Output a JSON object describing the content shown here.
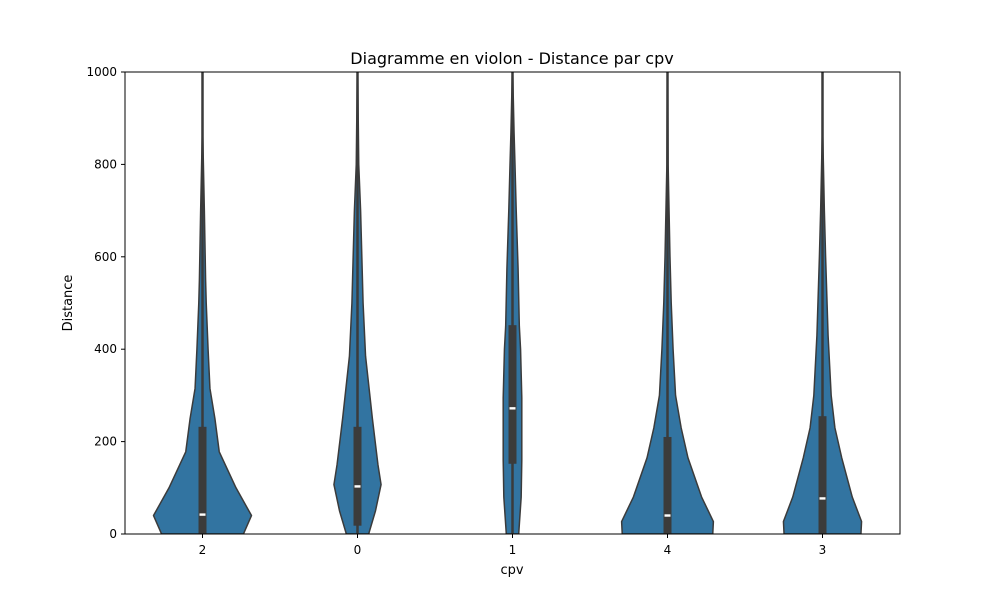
{
  "chart_data": {
    "type": "violin",
    "title": "Diagramme en violon - Distance par cpv",
    "xlabel": "cpv",
    "ylabel": "Distance",
    "ylim": [
      0,
      1000
    ],
    "yticks": [
      0,
      200,
      400,
      600,
      800,
      1000
    ],
    "grid": false,
    "color": "#3274a1",
    "categories": [
      "2",
      "0",
      "1",
      "4",
      "3"
    ],
    "violins": [
      {
        "category": "2",
        "q1": 0,
        "median": 42,
        "q3": 232,
        "whisker_low": 0,
        "whisker_high": 1000,
        "profile": [
          [
            0,
            0.66
          ],
          [
            40,
            0.79
          ],
          [
            100,
            0.54
          ],
          [
            178,
            0.27
          ],
          [
            250,
            0.2
          ],
          [
            315,
            0.12
          ],
          [
            400,
            0.09
          ],
          [
            500,
            0.06
          ],
          [
            550,
            0.05
          ],
          [
            700,
            0.03
          ],
          [
            860,
            0.005
          ],
          [
            1000,
            0.003
          ]
        ]
      },
      {
        "category": "0",
        "q1": 18,
        "median": 103,
        "q3": 232,
        "whisker_low": 0,
        "whisker_high": 1000,
        "profile": [
          [
            0,
            0.18
          ],
          [
            50,
            0.29
          ],
          [
            107,
            0.38
          ],
          [
            150,
            0.33
          ],
          [
            250,
            0.24
          ],
          [
            385,
            0.13
          ],
          [
            500,
            0.09
          ],
          [
            600,
            0.07
          ],
          [
            700,
            0.05
          ],
          [
            800,
            0.02
          ],
          [
            1000,
            0.003
          ]
        ]
      },
      {
        "category": "1",
        "q1": 152,
        "median": 272,
        "q3": 452,
        "whisker_low": 0,
        "whisker_high": 1000,
        "profile": [
          [
            0,
            0.1
          ],
          [
            20,
            0.11
          ],
          [
            80,
            0.14
          ],
          [
            160,
            0.15
          ],
          [
            295,
            0.15
          ],
          [
            400,
            0.13
          ],
          [
            450,
            0.11
          ],
          [
            575,
            0.09
          ],
          [
            700,
            0.06
          ],
          [
            800,
            0.04
          ],
          [
            870,
            0.025
          ],
          [
            1000,
            0.003
          ]
        ]
      },
      {
        "category": "4",
        "q1": 0,
        "median": 40,
        "q3": 210,
        "whisker_low": 0,
        "whisker_high": 1000,
        "profile": [
          [
            0,
            0.73
          ],
          [
            27,
            0.74
          ],
          [
            80,
            0.55
          ],
          [
            165,
            0.33
          ],
          [
            230,
            0.22
          ],
          [
            300,
            0.13
          ],
          [
            400,
            0.09
          ],
          [
            500,
            0.06
          ],
          [
            600,
            0.04
          ],
          [
            800,
            0.01
          ],
          [
            1000,
            0.003
          ]
        ]
      },
      {
        "category": "3",
        "q1": 0,
        "median": 77,
        "q3": 255,
        "whisker_low": 0,
        "whisker_high": 1000,
        "profile": [
          [
            0,
            0.62
          ],
          [
            27,
            0.63
          ],
          [
            80,
            0.48
          ],
          [
            165,
            0.31
          ],
          [
            230,
            0.2
          ],
          [
            300,
            0.14
          ],
          [
            430,
            0.09
          ],
          [
            600,
            0.05
          ],
          [
            700,
            0.03
          ],
          [
            860,
            0.005
          ],
          [
            1000,
            0.003
          ]
        ]
      }
    ]
  }
}
